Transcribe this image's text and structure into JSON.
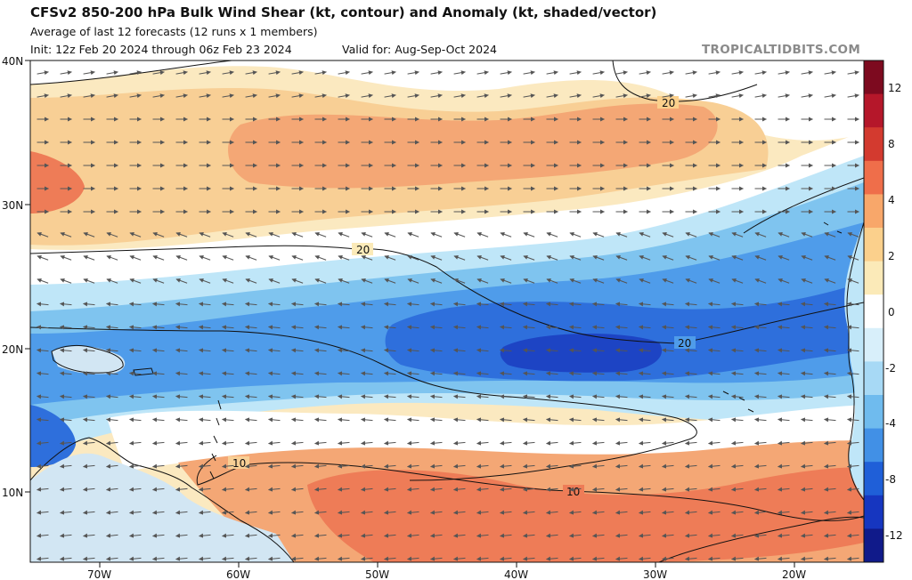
{
  "header": {
    "title": "CFSv2 850-200 hPa Bulk Wind Shear (kt, contour) and Anomaly (kt, shaded/vector)",
    "subtitle": "Average of last 12 forecasts (12 runs x 1 members)",
    "init": "Init: 12z Feb 20 2024 through 06z Feb 23 2024",
    "valid": "Valid for: Aug-Sep-Oct 2024",
    "credit": "TROPICALTIDBITS.COM"
  },
  "axes": {
    "lat_ticks": [
      "40N",
      "30N",
      "20N",
      "10N"
    ],
    "lon_ticks": [
      "70W",
      "60W",
      "50W",
      "40W",
      "30W",
      "20W"
    ]
  },
  "contour_labels": [
    "20",
    "20",
    "20",
    "10",
    "10"
  ],
  "colorbar": {
    "ticks": [
      "12",
      "8",
      "4",
      "2",
      "0",
      "-2",
      "-4",
      "-8",
      "-12"
    ],
    "colors": [
      "#7d0a1f",
      "#b5172a",
      "#d33a2f",
      "#ef6e4a",
      "#f8a76a",
      "#fbd08c",
      "#fbeab8",
      "#ffffff",
      "#d8effa",
      "#a7d9f5",
      "#6fbbee",
      "#4190e6",
      "#1f5fd8",
      "#1636c0",
      "#101a8a"
    ]
  },
  "fills": {
    "background": "#fbe9c0",
    "white": "#ffffff",
    "light_orange": "#f8cf95",
    "orange": "#f4a775",
    "dark_orange": "#ee7c57",
    "light_blue": "#bfe6f8",
    "mid_blue": "#7fc4ef",
    "blue": "#4f9cea",
    "dark_blue": "#2e6fdc",
    "deep_blue": "#1d44c4",
    "land": "#d2e6f3"
  }
}
